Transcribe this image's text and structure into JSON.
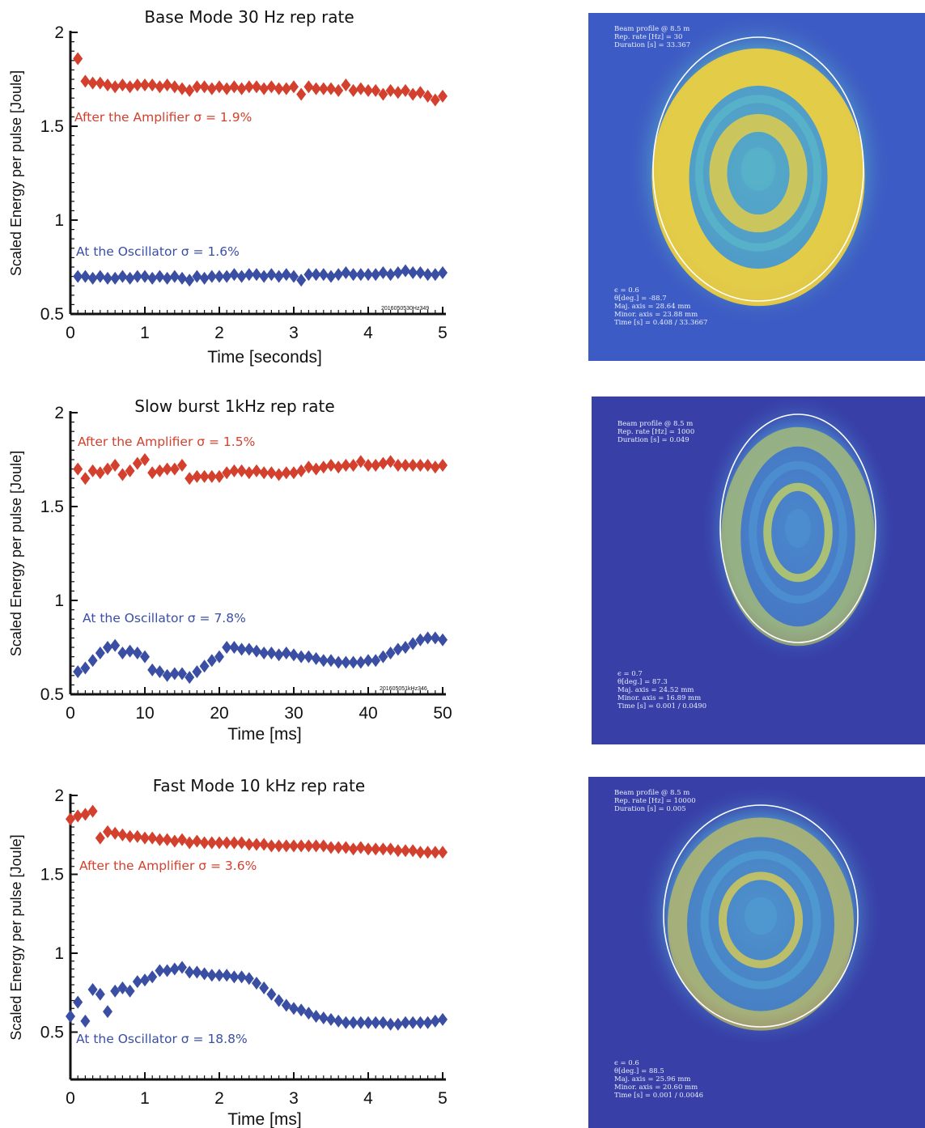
{
  "chart_data": [
    {
      "type": "scatter",
      "title": "Base Mode 30 Hz rep rate",
      "xlabel": "Time [seconds]",
      "ylabel": "Scaled Energy per pulse [Joule]",
      "xlim": [
        0,
        5
      ],
      "ylim": [
        0.5,
        2
      ],
      "xticks": [
        "0",
        "1",
        "2",
        "3",
        "4",
        "5"
      ],
      "yticks": [
        "0.5",
        "1",
        "1.5",
        "2"
      ],
      "tag": "2016050530Hz349",
      "series": [
        {
          "label": "After the Amplifier σ = 1.9%",
          "color": "#d3402e",
          "x": [
            0.1,
            0.2,
            0.3,
            0.4,
            0.5,
            0.6,
            0.7,
            0.8,
            0.9,
            1.0,
            1.1,
            1.2,
            1.3,
            1.4,
            1.5,
            1.6,
            1.7,
            1.8,
            1.9,
            2.0,
            2.1,
            2.2,
            2.3,
            2.4,
            2.5,
            2.6,
            2.7,
            2.8,
            2.9,
            3.0,
            3.1,
            3.2,
            3.3,
            3.4,
            3.5,
            3.6,
            3.7,
            3.8,
            3.9,
            4.0,
            4.1,
            4.2,
            4.3,
            4.4,
            4.5,
            4.6,
            4.7,
            4.8,
            4.9,
            5.0
          ],
          "y": [
            1.86,
            1.74,
            1.73,
            1.73,
            1.72,
            1.71,
            1.72,
            1.71,
            1.72,
            1.72,
            1.72,
            1.71,
            1.72,
            1.71,
            1.7,
            1.69,
            1.71,
            1.71,
            1.7,
            1.71,
            1.7,
            1.71,
            1.7,
            1.71,
            1.71,
            1.7,
            1.71,
            1.7,
            1.7,
            1.71,
            1.67,
            1.71,
            1.7,
            1.7,
            1.7,
            1.69,
            1.72,
            1.69,
            1.7,
            1.69,
            1.69,
            1.67,
            1.69,
            1.68,
            1.69,
            1.67,
            1.68,
            1.66,
            1.64,
            1.66
          ]
        },
        {
          "label": "At the Oscillator   σ = 1.6%",
          "color": "#3a4fa3",
          "x": [
            0.1,
            0.2,
            0.3,
            0.4,
            0.5,
            0.6,
            0.7,
            0.8,
            0.9,
            1.0,
            1.1,
            1.2,
            1.3,
            1.4,
            1.5,
            1.6,
            1.7,
            1.8,
            1.9,
            2.0,
            2.1,
            2.2,
            2.3,
            2.4,
            2.5,
            2.6,
            2.7,
            2.8,
            2.9,
            3.0,
            3.1,
            3.2,
            3.3,
            3.4,
            3.5,
            3.6,
            3.7,
            3.8,
            3.9,
            4.0,
            4.1,
            4.2,
            4.3,
            4.4,
            4.5,
            4.6,
            4.7,
            4.8,
            4.9,
            5.0
          ],
          "y": [
            0.7,
            0.7,
            0.69,
            0.7,
            0.69,
            0.69,
            0.7,
            0.69,
            0.7,
            0.7,
            0.69,
            0.7,
            0.69,
            0.7,
            0.69,
            0.68,
            0.7,
            0.69,
            0.7,
            0.7,
            0.7,
            0.71,
            0.7,
            0.71,
            0.71,
            0.7,
            0.71,
            0.7,
            0.71,
            0.7,
            0.68,
            0.71,
            0.71,
            0.71,
            0.7,
            0.71,
            0.72,
            0.71,
            0.71,
            0.71,
            0.71,
            0.72,
            0.71,
            0.72,
            0.73,
            0.72,
            0.72,
            0.71,
            0.71,
            0.72
          ]
        }
      ]
    },
    {
      "type": "scatter",
      "title": "Slow burst 1kHz rep rate",
      "xlabel": "Time [ms]",
      "ylabel": "Scaled Energy per pulse [Joule]",
      "xlim": [
        0,
        50
      ],
      "ylim": [
        0.5,
        2
      ],
      "xticks": [
        "0",
        "10",
        "20",
        "30",
        "40",
        "50"
      ],
      "yticks": [
        "0.5",
        "1",
        "1.5",
        "2"
      ],
      "tag": "201605051kHz346",
      "series": [
        {
          "label": "After the Amplifier σ = 1.5%",
          "color": "#d3402e",
          "x": [
            1,
            2,
            3,
            4,
            5,
            6,
            7,
            8,
            9,
            10,
            11,
            12,
            13,
            14,
            15,
            16,
            17,
            18,
            19,
            20,
            21,
            22,
            23,
            24,
            25,
            26,
            27,
            28,
            29,
            30,
            31,
            32,
            33,
            34,
            35,
            36,
            37,
            38,
            39,
            40,
            41,
            42,
            43,
            44,
            45,
            46,
            47,
            48,
            49,
            50
          ],
          "y": [
            1.7,
            1.65,
            1.69,
            1.68,
            1.7,
            1.72,
            1.67,
            1.69,
            1.73,
            1.75,
            1.68,
            1.69,
            1.7,
            1.7,
            1.72,
            1.65,
            1.66,
            1.66,
            1.66,
            1.66,
            1.68,
            1.69,
            1.69,
            1.68,
            1.69,
            1.68,
            1.68,
            1.67,
            1.68,
            1.68,
            1.69,
            1.71,
            1.7,
            1.71,
            1.72,
            1.71,
            1.72,
            1.72,
            1.74,
            1.72,
            1.72,
            1.73,
            1.74,
            1.72,
            1.72,
            1.72,
            1.72,
            1.72,
            1.71,
            1.72
          ]
        },
        {
          "label": "At the Oscillator    σ = 7.8%",
          "color": "#3a4fa3",
          "x": [
            1,
            2,
            3,
            4,
            5,
            6,
            7,
            8,
            9,
            10,
            11,
            12,
            13,
            14,
            15,
            16,
            17,
            18,
            19,
            20,
            21,
            22,
            23,
            24,
            25,
            26,
            27,
            28,
            29,
            30,
            31,
            32,
            33,
            34,
            35,
            36,
            37,
            38,
            39,
            40,
            41,
            42,
            43,
            44,
            45,
            46,
            47,
            48,
            49,
            50
          ],
          "y": [
            0.62,
            0.64,
            0.68,
            0.72,
            0.75,
            0.76,
            0.72,
            0.73,
            0.72,
            0.7,
            0.63,
            0.62,
            0.6,
            0.61,
            0.61,
            0.59,
            0.62,
            0.65,
            0.68,
            0.7,
            0.75,
            0.75,
            0.74,
            0.74,
            0.73,
            0.72,
            0.72,
            0.71,
            0.72,
            0.71,
            0.7,
            0.7,
            0.69,
            0.68,
            0.68,
            0.67,
            0.67,
            0.67,
            0.67,
            0.68,
            0.68,
            0.7,
            0.72,
            0.74,
            0.75,
            0.77,
            0.79,
            0.8,
            0.8,
            0.79
          ]
        }
      ]
    },
    {
      "type": "scatter",
      "title": "Fast Mode 10 kHz rep rate",
      "xlabel": "Time [ms]",
      "ylabel": "Scaled Energy per pulse [Joule]",
      "xlim": [
        0,
        5
      ],
      "ylim": [
        0.2,
        2
      ],
      "xticks": [
        "0",
        "1",
        "2",
        "3",
        "4",
        "5"
      ],
      "yticks": [
        "0.5",
        "1",
        "1.5",
        "2"
      ],
      "series": [
        {
          "label": "After the Amplifier σ = 3.6%",
          "color": "#d3402e",
          "x": [
            0.0,
            0.1,
            0.2,
            0.3,
            0.4,
            0.5,
            0.6,
            0.7,
            0.8,
            0.9,
            1.0,
            1.1,
            1.2,
            1.3,
            1.4,
            1.5,
            1.6,
            1.7,
            1.8,
            1.9,
            2.0,
            2.1,
            2.2,
            2.3,
            2.4,
            2.5,
            2.6,
            2.7,
            2.8,
            2.9,
            3.0,
            3.1,
            3.2,
            3.3,
            3.4,
            3.5,
            3.6,
            3.7,
            3.8,
            3.9,
            4.0,
            4.1,
            4.2,
            4.3,
            4.4,
            4.5,
            4.6,
            4.7,
            4.8,
            4.9,
            5.0
          ],
          "y": [
            1.85,
            1.87,
            1.88,
            1.9,
            1.73,
            1.77,
            1.76,
            1.75,
            1.74,
            1.74,
            1.73,
            1.73,
            1.72,
            1.72,
            1.71,
            1.72,
            1.7,
            1.71,
            1.7,
            1.7,
            1.7,
            1.7,
            1.7,
            1.7,
            1.69,
            1.69,
            1.69,
            1.68,
            1.68,
            1.68,
            1.68,
            1.68,
            1.68,
            1.68,
            1.68,
            1.67,
            1.67,
            1.67,
            1.66,
            1.67,
            1.66,
            1.66,
            1.66,
            1.66,
            1.65,
            1.65,
            1.65,
            1.64,
            1.64,
            1.64,
            1.64
          ]
        },
        {
          "label": "At the Oscillator    σ = 18.8%",
          "color": "#3a4fa3",
          "x": [
            0.0,
            0.1,
            0.2,
            0.3,
            0.4,
            0.5,
            0.6,
            0.7,
            0.8,
            0.9,
            1.0,
            1.1,
            1.2,
            1.3,
            1.4,
            1.5,
            1.6,
            1.7,
            1.8,
            1.9,
            2.0,
            2.1,
            2.2,
            2.3,
            2.4,
            2.5,
            2.6,
            2.7,
            2.8,
            2.9,
            3.0,
            3.1,
            3.2,
            3.3,
            3.4,
            3.5,
            3.6,
            3.7,
            3.8,
            3.9,
            4.0,
            4.1,
            4.2,
            4.3,
            4.4,
            4.5,
            4.6,
            4.7,
            4.8,
            4.9,
            5.0
          ],
          "y": [
            0.6,
            0.69,
            0.57,
            0.77,
            0.74,
            0.63,
            0.76,
            0.78,
            0.76,
            0.82,
            0.83,
            0.85,
            0.89,
            0.89,
            0.9,
            0.91,
            0.88,
            0.88,
            0.87,
            0.86,
            0.86,
            0.86,
            0.85,
            0.85,
            0.84,
            0.81,
            0.78,
            0.74,
            0.7,
            0.67,
            0.65,
            0.64,
            0.62,
            0.6,
            0.59,
            0.58,
            0.57,
            0.56,
            0.56,
            0.56,
            0.56,
            0.56,
            0.56,
            0.55,
            0.55,
            0.56,
            0.56,
            0.56,
            0.56,
            0.57,
            0.58
          ]
        }
      ]
    }
  ],
  "beam_profiles": [
    {
      "header": [
        "Beam profile @ 8.5 m",
        "Rep. rate [Hz] = 30",
        "Duration [s] = 33.367"
      ],
      "stats": [
        "ϵ = 0.6",
        "θ[deg.] = -88.7",
        "Maj. axis = 28.64 mm",
        "Minor. axis = 23.88 mm",
        "Time [s] = 0.408 / 33.3667"
      ],
      "colors": {
        "bg": "#3d5bc4",
        "mid": "#57b3c9",
        "hot": "#f3d13a"
      }
    },
    {
      "header": [
        "Beam profile @ 8.5 m",
        "Rep. rate [Hz] = 1000",
        "Duration [s] = 0.049"
      ],
      "stats": [
        "ϵ = 0.7",
        "θ[deg.] = 87.3",
        "Maj. axis = 24.52 mm",
        "Minor. axis = 16.89 mm",
        "Time [s] = 0.001 / 0.0490"
      ],
      "colors": {
        "bg": "#3840a8",
        "mid": "#4c8fd0",
        "hot": "#c9d65a"
      }
    },
    {
      "header": [
        "Beam profile @ 8.5 m",
        "Rep. rate [Hz] = 10000",
        "Duration [s] = 0.005"
      ],
      "stats": [
        "ϵ = 0.6",
        "θ[deg.] = 88.5",
        "Maj. axis = 25.96 mm",
        "Minor. axis = 20.60 mm",
        "Time [s] = 0.001 / 0.0046"
      ],
      "colors": {
        "bg": "#3840a8",
        "mid": "#4f9ad0",
        "hot": "#e3d04a"
      }
    }
  ]
}
